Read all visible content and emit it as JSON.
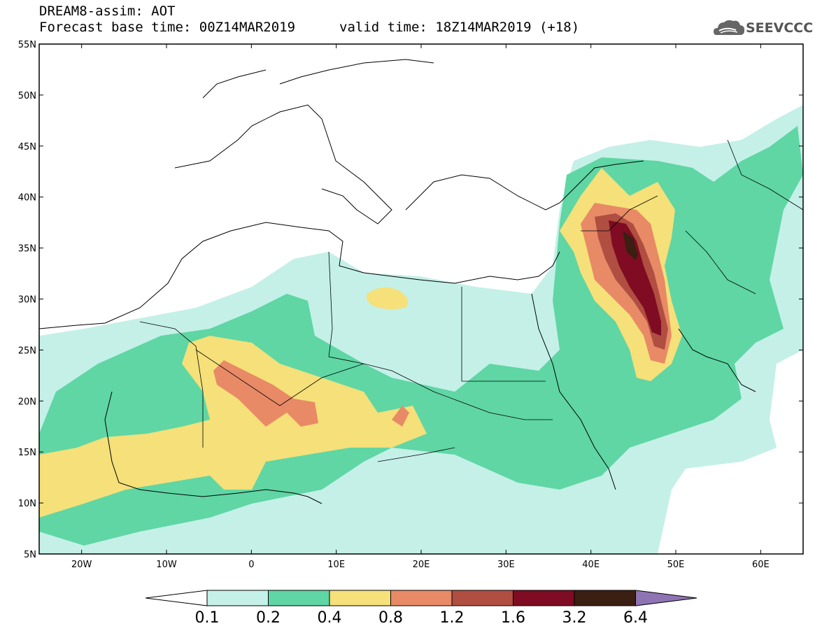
{
  "header": {
    "title": "DREAM8-assim: AOT",
    "base_time": "Forecast base time: 00Z14MAR2019",
    "valid_time": "valid time: 18Z14MAR2019 (+18)"
  },
  "logo": {
    "text": "SEEVCCC",
    "icon": "cloud-icon"
  },
  "map": {
    "lon_range": [
      -25,
      65
    ],
    "lat_range": [
      5,
      55
    ],
    "lat_ticks": [
      "55N",
      "50N",
      "45N",
      "40N",
      "35N",
      "30N",
      "25N",
      "20N",
      "15N",
      "10N",
      "5N"
    ],
    "lon_ticks": [
      "20W",
      "10W",
      "0",
      "10E",
      "20E",
      "30E",
      "40E",
      "50E",
      "60E"
    ]
  },
  "colorbar": {
    "labels": [
      "0.1",
      "0.2",
      "0.4",
      "0.8",
      "1.2",
      "1.6",
      "3.2",
      "6.4"
    ],
    "colors": [
      "#c4f0e8",
      "#5fd6a4",
      "#f5e079",
      "#e88a66",
      "#b04e41",
      "#7f0c22",
      "#3a1f12"
    ],
    "under_color": "#ffffff",
    "over_color": "#8f74b4"
  }
}
